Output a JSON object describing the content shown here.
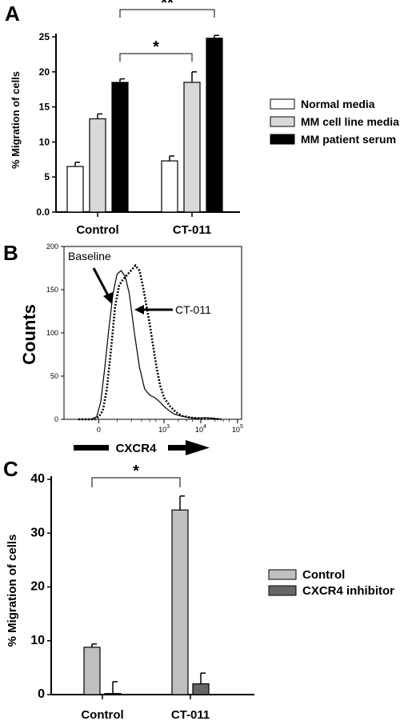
{
  "colors": {
    "white": "#ffffff",
    "light_gray": "#d9d9d9",
    "black": "#000000",
    "gray": "#bfbfbf",
    "dark_gray": "#666666"
  },
  "panels": {
    "A": {
      "label": "A"
    },
    "B": {
      "label": "B"
    },
    "C": {
      "label": "C"
    }
  },
  "chart_data": [
    {
      "panel": "A",
      "type": "bar",
      "ylabel": "% Migration of cells",
      "ylim": [
        0,
        25
      ],
      "yticks": [
        "0.0",
        "5",
        "10",
        "15",
        "20",
        "25"
      ],
      "categories": [
        "Control",
        "CT-011"
      ],
      "series": [
        {
          "name": "Normal media",
          "color": "#ffffff",
          "values": [
            6.5,
            7.3
          ],
          "errors": [
            0.6,
            0.7
          ]
        },
        {
          "name": "MM cell line media",
          "color": "#d9d9d9",
          "values": [
            13.3,
            18.5
          ],
          "errors": [
            0.7,
            1.5
          ]
        },
        {
          "name": "MM patient serum",
          "color": "#000000",
          "values": [
            18.5,
            24.8
          ],
          "errors": [
            0.5,
            0.4
          ]
        }
      ],
      "annotations": [
        {
          "text": "*",
          "from": [
            "Control",
            "MM patient serum"
          ],
          "to": [
            "CT-011",
            "MM cell line media"
          ]
        },
        {
          "text": "**",
          "from": [
            "Control",
            "MM patient serum"
          ],
          "to": [
            "CT-011",
            "MM patient serum"
          ]
        }
      ],
      "legend_position": "right"
    },
    {
      "panel": "B",
      "type": "line",
      "ylabel": "Counts",
      "xlabel": "CXCR4",
      "ylim": [
        0,
        200
      ],
      "yticks": [
        "0",
        "50",
        "100",
        "150",
        "200"
      ],
      "xticks": [
        "0",
        "10³",
        "10⁴",
        "10⁵"
      ],
      "xticks_base": [
        "0",
        "10",
        "10",
        "10"
      ],
      "xticks_exp": [
        "",
        "3",
        "4",
        "5"
      ],
      "x_axis": "biexponential fluorescence, decades: 0, 3, 4, 5",
      "series": [
        {
          "name": "Baseline",
          "style": "solid",
          "x": [
            -1.0,
            -0.4,
            -0.1,
            0.1,
            0.3,
            0.5,
            0.7,
            0.9,
            1.1,
            1.3,
            1.5,
            1.75,
            2.0,
            2.25,
            2.5,
            2.75,
            3.0,
            3.2,
            3.45,
            3.7,
            4.0,
            4.4,
            4.8,
            5.2,
            5.6,
            6.0
          ],
          "y": [
            0,
            0,
            3,
            20,
            60,
            105,
            145,
            168,
            172,
            165,
            145,
            100,
            60,
            35,
            28,
            25,
            20,
            15,
            10,
            6,
            4,
            2,
            1,
            2,
            1,
            0
          ]
        },
        {
          "name": "CT-011",
          "style": "dotted",
          "x": [
            -1.0,
            -0.2,
            0.0,
            0.2,
            0.4,
            0.6,
            0.8,
            1.0,
            1.2,
            1.5,
            1.8,
            2.0,
            2.2,
            2.5,
            2.8,
            3.0,
            3.2,
            3.5,
            3.8,
            4.1,
            4.5,
            5.0,
            5.5,
            6.0
          ],
          "y": [
            0,
            0,
            3,
            10,
            35,
            80,
            130,
            155,
            162,
            170,
            178,
            172,
            150,
            110,
            65,
            40,
            25,
            15,
            8,
            4,
            2,
            1,
            1,
            0
          ]
        }
      ],
      "annotations": [
        {
          "text": "Baseline",
          "arrow_to": "Baseline"
        },
        {
          "text": "CT-011",
          "arrow_to": "CT-011"
        }
      ]
    },
    {
      "panel": "C",
      "type": "bar",
      "ylabel": "% Migration of cells",
      "ylim": [
        0,
        40
      ],
      "yticks": [
        "0",
        "10",
        "20",
        "30",
        "40"
      ],
      "categories": [
        "Control",
        "CT-011"
      ],
      "series": [
        {
          "name": "Control",
          "color": "#bfbfbf",
          "values": [
            8.8,
            34.3
          ],
          "errors": [
            0.6,
            2.6
          ]
        },
        {
          "name": "CXCR4 inhibitor",
          "color": "#666666",
          "values": [
            0.2,
            2.0
          ],
          "errors": [
            2.2,
            2.0
          ]
        }
      ],
      "annotations": [
        {
          "text": "*",
          "from": [
            "Control",
            "Control"
          ],
          "to": [
            "CT-011",
            "Control"
          ]
        }
      ],
      "legend_position": "right"
    }
  ]
}
